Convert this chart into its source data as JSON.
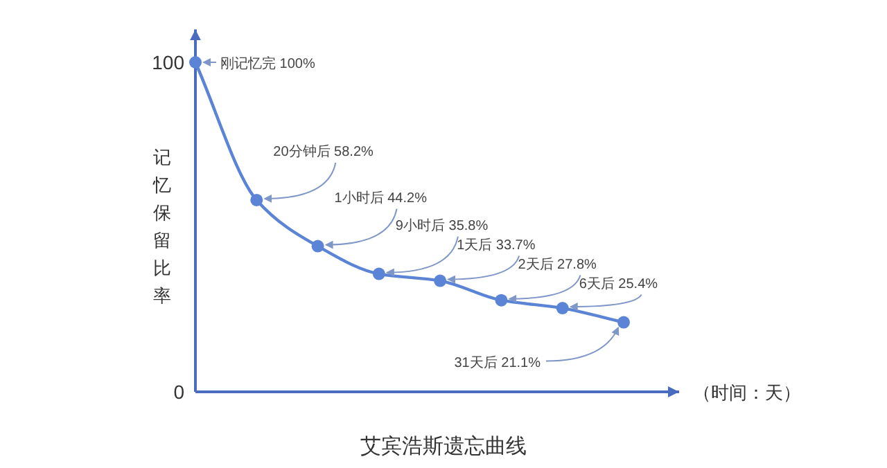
{
  "chart_data": {
    "type": "line",
    "title": "艾宾浩斯遗忘曲线",
    "xlabel": "（时间：天）",
    "ylabel": "记忆保留比率",
    "categories": [
      null,
      null,
      null,
      null,
      null,
      null,
      null,
      null
    ],
    "values": [
      100,
      58.2,
      44.2,
      35.8,
      33.7,
      27.8,
      25.4,
      21.1
    ],
    "value_labels": [
      "刚记忆完 100%",
      "20分钟后 58.2%",
      "1小时后 44.2%",
      "9小时后 35.8%",
      "1天后 33.7%",
      "2天后 27.8%",
      "6天后 25.4%",
      "31天后 21.1%"
    ],
    "color": "#5b84d6",
    "marker": "circle",
    "line_style": "solid",
    "ylim": [
      0,
      110
    ],
    "yticks": [
      0,
      100
    ]
  }
}
